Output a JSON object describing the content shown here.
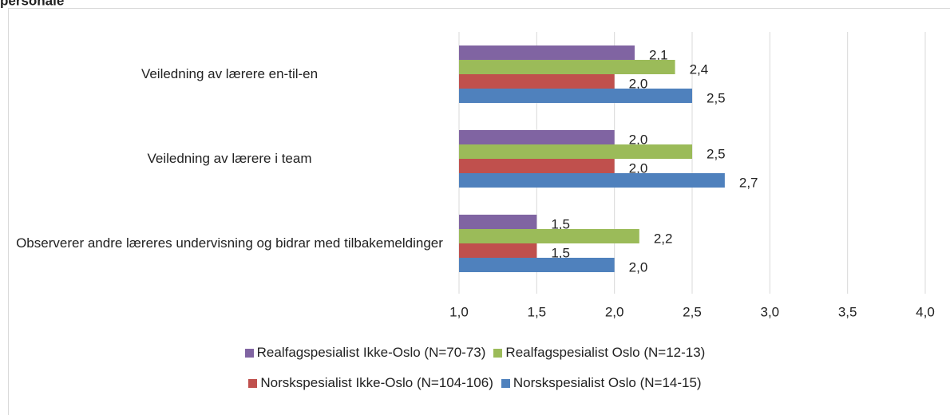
{
  "chart_data": {
    "type": "hbar",
    "title": "personale",
    "categories": [
      "Veiledning av lærere en-til-en",
      "Veiledning av lærere i team",
      "Observerer andre læreres undervisning og bidrar med tilbakemeldinger"
    ],
    "series": [
      {
        "name": "Realfagspesialist Ikke-Oslo (N=70-73)",
        "color": "#8064a2",
        "values": [
          2.13,
          2.0,
          1.5
        ],
        "value_labels": [
          "2,1",
          "2,0",
          "1,5"
        ]
      },
      {
        "name": "Realfagspesialist Oslo (N=12-13)",
        "color": "#9bbb59",
        "values": [
          2.39,
          2.5,
          2.16
        ],
        "value_labels": [
          "2,4",
          "2,5",
          "2,2"
        ]
      },
      {
        "name": "Norskspesialist Ikke-Oslo (N=104-106)",
        "color": "#c0504d",
        "values": [
          2.0,
          2.0,
          1.5
        ],
        "value_labels": [
          "2,0",
          "2,0",
          "1,5"
        ]
      },
      {
        "name": "Norskspesialist Oslo (N=14-15)",
        "color": "#4f81bd",
        "values": [
          2.5,
          2.71,
          2.0
        ],
        "value_labels": [
          "2,5",
          "2,7",
          "2,0"
        ]
      }
    ],
    "xlim": [
      1.0,
      4.0
    ],
    "xticks": [
      {
        "value": 1.0,
        "label": "1,0"
      },
      {
        "value": 1.5,
        "label": "1,5"
      },
      {
        "value": 2.0,
        "label": "2,0"
      },
      {
        "value": 2.5,
        "label": "2,5"
      },
      {
        "value": 3.0,
        "label": "3,0"
      },
      {
        "value": 3.5,
        "label": "3,5"
      },
      {
        "value": 4.0,
        "label": "4,0"
      }
    ],
    "grid": true
  }
}
